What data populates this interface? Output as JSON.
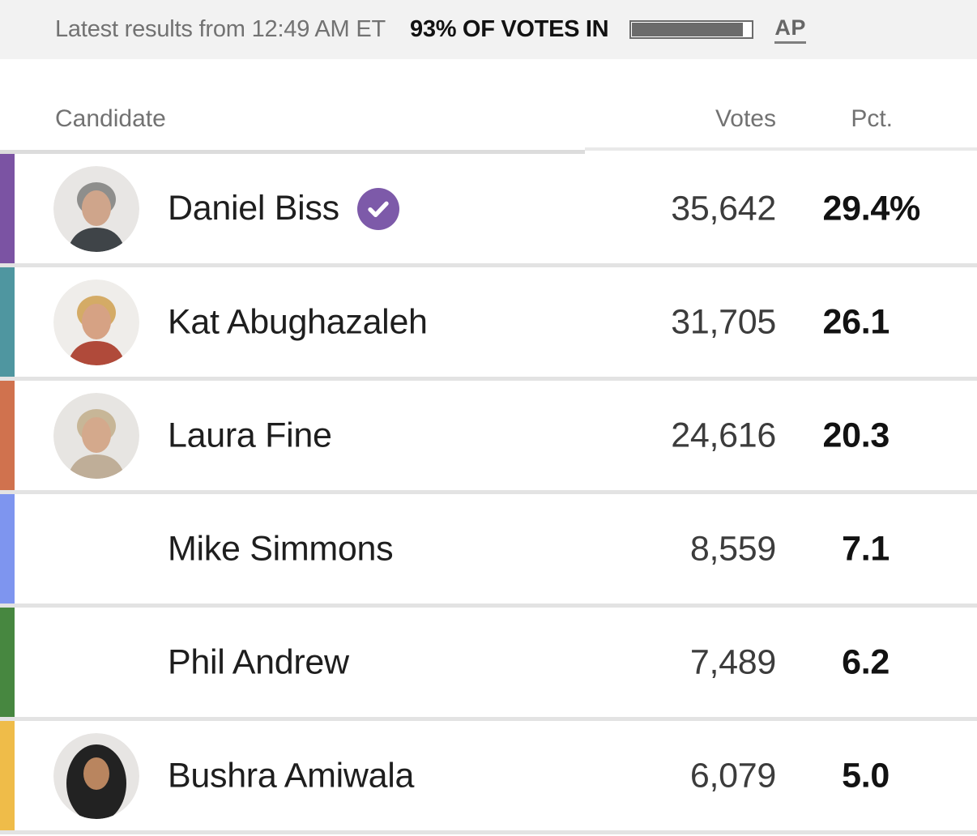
{
  "topbar": {
    "latest_results_text": "Latest results from 12:49 AM ET",
    "votes_in_text": "93% OF VOTES IN",
    "progress_percent": 93,
    "source_label": "AP"
  },
  "table": {
    "columns": [
      "Candidate",
      "Votes",
      "Pct."
    ],
    "rows": [
      {
        "name": "Daniel Biss",
        "winner": true,
        "votes": "35,642",
        "pct": "29.4",
        "pct_suffix": "%",
        "bar_color": "#7b53a3",
        "avatar": {
          "bg": "#e8e6e4",
          "hair": "#8e8e8c",
          "skin": "#cfa58b",
          "shirt": "#3f4448",
          "style": "person"
        }
      },
      {
        "name": "Kat Abughazaleh",
        "winner": false,
        "votes": "31,705",
        "pct": "26.1",
        "pct_suffix": "",
        "bar_color": "#4f96a0",
        "avatar": {
          "bg": "#efedea",
          "hair": "#d4ab66",
          "skin": "#d6a284",
          "shirt": "#b04a3a",
          "style": "person"
        }
      },
      {
        "name": "Laura Fine",
        "winner": false,
        "votes": "24,616",
        "pct": "20.3",
        "pct_suffix": "",
        "bar_color": "#d0724e",
        "avatar": {
          "bg": "#e7e5e2",
          "hair": "#c7b697",
          "skin": "#d4a98c",
          "shirt": "#bfae98",
          "style": "person"
        }
      },
      {
        "name": "Mike Simmons",
        "winner": false,
        "votes": "8,559",
        "pct": "7.1",
        "pct_suffix": "",
        "bar_color": "#7e95ef",
        "avatar": null
      },
      {
        "name": "Phil Andrew",
        "winner": false,
        "votes": "7,489",
        "pct": "6.2",
        "pct_suffix": "",
        "bar_color": "#478740",
        "avatar": null
      },
      {
        "name": "Bushra Amiwala",
        "winner": false,
        "votes": "6,079",
        "pct": "5.0",
        "pct_suffix": "",
        "bar_color": "#efbc49",
        "avatar": {
          "bg": "#e7e5e3",
          "hair": "#222222",
          "skin": "#b9855f",
          "shirt": "#222222",
          "style": "hijab"
        }
      }
    ]
  },
  "colors": {
    "topbar_bg": "#f2f2f2",
    "muted_text": "#727272",
    "dark_text": "#121212",
    "row_divider": "#e3e3e3",
    "progress_bar": "#6b6b6b",
    "winner_badge": "#7d5aa9"
  }
}
